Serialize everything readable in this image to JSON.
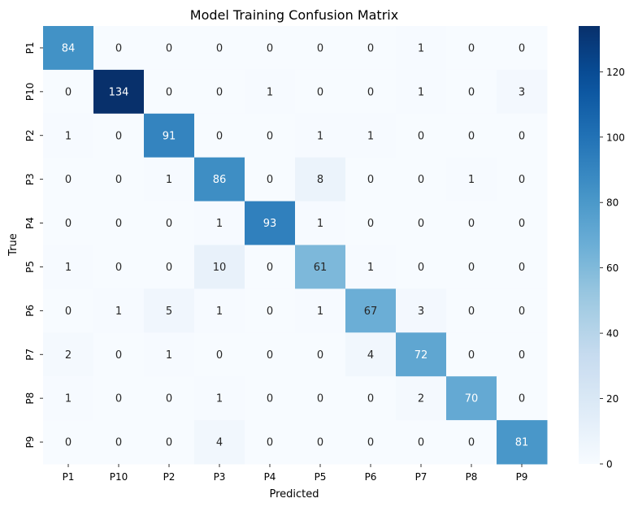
{
  "chart_data": {
    "type": "heatmap",
    "title": "Model Training Confusion Matrix",
    "xlabel": "Predicted",
    "ylabel": "True",
    "x_categories": [
      "P1",
      "P10",
      "P2",
      "P3",
      "P4",
      "P5",
      "P6",
      "P7",
      "P8",
      "P9"
    ],
    "y_categories": [
      "P1",
      "P10",
      "P2",
      "P3",
      "P4",
      "P5",
      "P6",
      "P7",
      "P8",
      "P9"
    ],
    "values": [
      [
        84,
        0,
        0,
        0,
        0,
        0,
        0,
        1,
        0,
        0
      ],
      [
        0,
        134,
        0,
        0,
        1,
        0,
        0,
        1,
        0,
        3
      ],
      [
        1,
        0,
        91,
        0,
        0,
        1,
        1,
        0,
        0,
        0
      ],
      [
        0,
        0,
        1,
        86,
        0,
        8,
        0,
        0,
        1,
        0
      ],
      [
        0,
        0,
        0,
        1,
        93,
        1,
        0,
        0,
        0,
        0
      ],
      [
        1,
        0,
        0,
        10,
        0,
        61,
        1,
        0,
        0,
        0
      ],
      [
        0,
        1,
        5,
        1,
        0,
        1,
        67,
        3,
        0,
        0
      ],
      [
        2,
        0,
        1,
        0,
        0,
        0,
        4,
        72,
        0,
        0
      ],
      [
        1,
        0,
        0,
        1,
        0,
        0,
        0,
        2,
        70,
        0
      ],
      [
        0,
        0,
        0,
        4,
        0,
        0,
        0,
        0,
        0,
        81
      ]
    ],
    "colorbar": {
      "min": 0,
      "max": 134,
      "ticks": [
        0,
        20,
        40,
        60,
        80,
        100,
        120
      ]
    },
    "colormap": "Blues",
    "colors": {
      "low": "#f7fbff",
      "high": "#08306b",
      "text_dark": "#262626",
      "text_light": "#ffffff"
    }
  }
}
